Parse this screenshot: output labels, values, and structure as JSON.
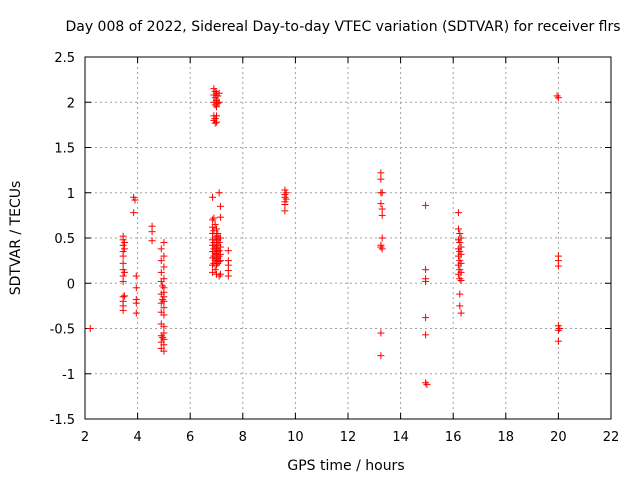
{
  "chart_data": {
    "type": "scatter",
    "title": "Day 008 of 2022, Sidereal Day-to-day VTEC variation (SDTVAR) for receiver flrs",
    "xlabel": "GPS time / hours",
    "ylabel": "SDTVAR / TECUs",
    "xlim": [
      2,
      22
    ],
    "ylim": [
      -1.5,
      2.5
    ],
    "xticks": [
      "2",
      "4",
      "6",
      "8",
      "10",
      "12",
      "14",
      "16",
      "18",
      "20",
      "22"
    ],
    "yticks": [
      "-1.5",
      "-1",
      "-0.5",
      "0",
      "0.5",
      "1",
      "1.5",
      "2",
      "2.5"
    ],
    "xtick_values": [
      2,
      4,
      6,
      8,
      10,
      12,
      14,
      16,
      18,
      20,
      22
    ],
    "ytick_values": [
      -1.5,
      -1,
      -0.5,
      0,
      0.5,
      1,
      1.5,
      2,
      2.5
    ],
    "grid": true,
    "marker": "+",
    "color": "#ff0000",
    "series": [
      {
        "name": "SDTVAR",
        "points": [
          [
            2.2,
            -0.5
          ],
          [
            3.45,
            0.52
          ],
          [
            3.45,
            0.48
          ],
          [
            3.45,
            0.42
          ],
          [
            3.45,
            0.35
          ],
          [
            3.45,
            0.3
          ],
          [
            3.45,
            0.22
          ],
          [
            3.45,
            0.15
          ],
          [
            3.45,
            0.08
          ],
          [
            3.45,
            0.02
          ],
          [
            3.45,
            -0.15
          ],
          [
            3.45,
            -0.2
          ],
          [
            3.45,
            -0.25
          ],
          [
            3.45,
            -0.3
          ],
          [
            3.5,
            0.45
          ],
          [
            3.5,
            0.38
          ],
          [
            3.5,
            0.12
          ],
          [
            3.5,
            -0.14
          ],
          [
            3.85,
            0.95
          ],
          [
            3.85,
            0.78
          ],
          [
            3.9,
            0.92
          ],
          [
            3.95,
            0.08
          ],
          [
            3.95,
            -0.05
          ],
          [
            3.95,
            -0.18
          ],
          [
            3.95,
            -0.22
          ],
          [
            3.95,
            -0.33
          ],
          [
            4.55,
            0.63
          ],
          [
            4.55,
            0.57
          ],
          [
            4.55,
            0.47
          ],
          [
            4.9,
            0.38
          ],
          [
            4.9,
            0.25
          ],
          [
            4.9,
            0.12
          ],
          [
            4.9,
            0.02
          ],
          [
            4.9,
            -0.12
          ],
          [
            4.9,
            -0.22
          ],
          [
            4.9,
            -0.32
          ],
          [
            4.9,
            -0.45
          ],
          [
            4.9,
            -0.58
          ],
          [
            4.9,
            -0.65
          ],
          [
            4.9,
            -0.72
          ],
          [
            5.0,
            0.45
          ],
          [
            5.0,
            0.3
          ],
          [
            5.0,
            0.18
          ],
          [
            5.0,
            0.05
          ],
          [
            5.0,
            -0.05
          ],
          [
            5.0,
            -0.1
          ],
          [
            5.0,
            -0.15
          ],
          [
            5.0,
            -0.2
          ],
          [
            5.0,
            -0.27
          ],
          [
            5.0,
            -0.35
          ],
          [
            5.0,
            -0.48
          ],
          [
            5.0,
            -0.55
          ],
          [
            5.0,
            -0.62
          ],
          [
            5.0,
            -0.68
          ],
          [
            5.0,
            -0.75
          ],
          [
            4.95,
            -0.03
          ],
          [
            4.95,
            -0.18
          ],
          [
            4.95,
            -0.6
          ],
          [
            6.85,
            0.95
          ],
          [
            6.85,
            0.7
          ],
          [
            6.85,
            0.62
          ],
          [
            6.85,
            0.55
          ],
          [
            6.85,
            0.48
          ],
          [
            6.85,
            0.42
          ],
          [
            6.85,
            0.35
          ],
          [
            6.85,
            0.28
          ],
          [
            6.85,
            0.2
          ],
          [
            6.85,
            0.12
          ],
          [
            6.9,
            2.15
          ],
          [
            6.9,
            2.08
          ],
          [
            6.9,
            2.0
          ],
          [
            6.9,
            1.85
          ],
          [
            6.9,
            1.8
          ],
          [
            6.9,
            0.72
          ],
          [
            6.9,
            0.58
          ],
          [
            6.9,
            0.45
          ],
          [
            6.9,
            0.38
          ],
          [
            6.9,
            0.3
          ],
          [
            6.9,
            0.22
          ],
          [
            6.95,
            2.12
          ],
          [
            6.95,
            2.05
          ],
          [
            6.95,
            1.97
          ],
          [
            6.95,
            1.82
          ],
          [
            6.95,
            1.77
          ],
          [
            6.95,
            0.65
          ],
          [
            6.95,
            0.5
          ],
          [
            6.95,
            0.4
          ],
          [
            6.95,
            0.33
          ],
          [
            6.95,
            0.25
          ],
          [
            6.95,
            0.15
          ],
          [
            7.0,
            2.1
          ],
          [
            7.0,
            2.02
          ],
          [
            7.0,
            1.95
          ],
          [
            7.0,
            1.85
          ],
          [
            7.0,
            1.78
          ],
          [
            7.0,
            0.6
          ],
          [
            7.0,
            0.52
          ],
          [
            7.0,
            0.45
          ],
          [
            7.0,
            0.38
          ],
          [
            7.0,
            0.32
          ],
          [
            7.0,
            0.27
          ],
          [
            7.0,
            0.2
          ],
          [
            7.0,
            0.1
          ],
          [
            7.05,
            2.07
          ],
          [
            7.05,
            1.99
          ],
          [
            7.05,
            0.55
          ],
          [
            7.05,
            0.48
          ],
          [
            7.05,
            0.42
          ],
          [
            7.05,
            0.35
          ],
          [
            7.05,
            0.28
          ],
          [
            7.05,
            0.22
          ],
          [
            7.1,
            2.1
          ],
          [
            7.1,
            2.0
          ],
          [
            7.1,
            1.0
          ],
          [
            7.1,
            0.5
          ],
          [
            7.1,
            0.45
          ],
          [
            7.1,
            0.36
          ],
          [
            7.1,
            0.3
          ],
          [
            7.1,
            0.24
          ],
          [
            7.1,
            0.08
          ],
          [
            7.15,
            0.85
          ],
          [
            7.15,
            0.73
          ],
          [
            7.15,
            0.5
          ],
          [
            7.15,
            0.4
          ],
          [
            7.15,
            0.32
          ],
          [
            7.15,
            0.25
          ],
          [
            7.15,
            0.1
          ],
          [
            7.45,
            0.36
          ],
          [
            7.45,
            0.25
          ],
          [
            7.45,
            0.2
          ],
          [
            7.45,
            0.14
          ],
          [
            7.45,
            0.08
          ],
          [
            9.6,
            1.03
          ],
          [
            9.6,
            0.98
          ],
          [
            9.6,
            0.95
          ],
          [
            9.6,
            0.9
          ],
          [
            9.6,
            0.87
          ],
          [
            9.6,
            0.8
          ],
          [
            9.65,
            1.0
          ],
          [
            9.65,
            0.93
          ],
          [
            13.25,
            1.22
          ],
          [
            13.25,
            1.15
          ],
          [
            13.25,
            1.0
          ],
          [
            13.25,
            0.88
          ],
          [
            13.25,
            0.42
          ],
          [
            13.25,
            0.4
          ],
          [
            13.25,
            -0.55
          ],
          [
            13.25,
            -0.8
          ],
          [
            13.3,
            1.0
          ],
          [
            13.3,
            0.82
          ],
          [
            13.3,
            0.75
          ],
          [
            13.3,
            0.5
          ],
          [
            13.3,
            0.38
          ],
          [
            14.95,
            0.86
          ],
          [
            14.95,
            0.15
          ],
          [
            14.95,
            0.05
          ],
          [
            14.95,
            0.02
          ],
          [
            14.95,
            -0.38
          ],
          [
            14.95,
            -0.57
          ],
          [
            14.95,
            -1.1
          ],
          [
            15.0,
            -1.12
          ],
          [
            16.2,
            0.78
          ],
          [
            16.2,
            0.6
          ],
          [
            16.2,
            0.48
          ],
          [
            16.2,
            0.38
          ],
          [
            16.2,
            0.3
          ],
          [
            16.2,
            0.2
          ],
          [
            16.2,
            0.1
          ],
          [
            16.25,
            0.55
          ],
          [
            16.25,
            0.45
          ],
          [
            16.25,
            0.35
          ],
          [
            16.25,
            0.25
          ],
          [
            16.25,
            0.15
          ],
          [
            16.25,
            0.05
          ],
          [
            16.25,
            -0.12
          ],
          [
            16.25,
            -0.25
          ],
          [
            16.3,
            0.5
          ],
          [
            16.3,
            0.4
          ],
          [
            16.3,
            0.32
          ],
          [
            16.3,
            0.22
          ],
          [
            16.3,
            0.12
          ],
          [
            16.3,
            0.03
          ],
          [
            16.3,
            -0.33
          ],
          [
            19.95,
            2.07
          ],
          [
            20.0,
            2.05
          ],
          [
            20.0,
            0.3
          ],
          [
            20.0,
            0.25
          ],
          [
            20.0,
            0.19
          ],
          [
            20.0,
            -0.47
          ],
          [
            20.0,
            -0.52
          ],
          [
            20.0,
            -0.64
          ],
          [
            20.05,
            -0.5
          ]
        ]
      }
    ]
  }
}
